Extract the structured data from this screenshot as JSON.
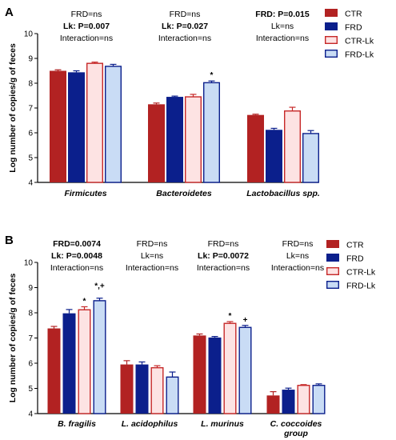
{
  "chart_data": [
    {
      "panel": "A",
      "type": "bar",
      "ylabel": "Log number of copies/g of feces",
      "ylim": [
        4,
        10
      ],
      "yticks": [
        "4",
        "5",
        "6",
        "7",
        "8",
        "9",
        "10"
      ],
      "categories": [
        "Firmicutes",
        "Bacteroidetes",
        "Lactobacillus spp."
      ],
      "series": [
        {
          "name": "CTR",
          "fill": "#b22222",
          "stroke": "#b22222",
          "values": [
            8.5,
            7.15,
            6.72
          ],
          "errors": [
            0.04,
            0.05,
            0.03
          ]
        },
        {
          "name": "FRD",
          "fill": "#0b1f8c",
          "stroke": "#0b1f8c",
          "values": [
            8.44,
            7.45,
            6.12
          ],
          "errors": [
            0.06,
            0.03,
            0.06
          ]
        },
        {
          "name": "CTR-Lk",
          "fill": "#fde3e3",
          "stroke": "#c62828",
          "values": [
            8.8,
            7.45,
            6.88
          ],
          "errors": [
            0.05,
            0.1,
            0.15
          ]
        },
        {
          "name": "FRD-Lk",
          "fill": "#c9dcf5",
          "stroke": "#0b1f8c",
          "values": [
            8.68,
            8.02,
            5.97
          ],
          "errors": [
            0.08,
            0.07,
            0.12
          ]
        }
      ],
      "significance_marks": [
        {
          "category": "Bacteroidetes",
          "series": "FRD-Lk",
          "mark": "*"
        }
      ],
      "stats": [
        [
          {
            "text": "FRD=ns",
            "bold": false
          },
          {
            "text": "Lk: P=0.007",
            "bold": true
          },
          {
            "text": "Interaction=ns",
            "bold": false
          }
        ],
        [
          {
            "text": "FRD=ns",
            "bold": false
          },
          {
            "text": "Lk: P=0.027",
            "bold": true
          },
          {
            "text": "Interaction=ns",
            "bold": false
          }
        ],
        [
          {
            "text": "FRD: P=0.015",
            "bold": true
          },
          {
            "text": "Lk=ns",
            "bold": false
          },
          {
            "text": "Interaction=ns",
            "bold": false
          }
        ]
      ],
      "legend": [
        "CTR",
        "FRD",
        "CTR-Lk",
        "FRD-Lk"
      ],
      "legend_position": "top-right"
    },
    {
      "panel": "B",
      "type": "bar",
      "ylabel": "Log number of copies/g of feces",
      "ylim": [
        4,
        10
      ],
      "yticks": [
        "4",
        "5",
        "6",
        "7",
        "8",
        "9",
        "10"
      ],
      "categories": [
        "B. fragilis",
        "L. acidophilus",
        "L. murinus",
        "C. coccoides group"
      ],
      "series": [
        {
          "name": "CTR",
          "fill": "#b22222",
          "stroke": "#b22222",
          "values": [
            7.38,
            5.95,
            7.1,
            4.72
          ],
          "errors": [
            0.08,
            0.15,
            0.06,
            0.15
          ]
        },
        {
          "name": "FRD",
          "fill": "#0b1f8c",
          "stroke": "#0b1f8c",
          "values": [
            7.98,
            5.95,
            7.02,
            4.95
          ],
          "errors": [
            0.15,
            0.1,
            0.04,
            0.06
          ]
        },
        {
          "name": "CTR-Lk",
          "fill": "#fde3e3",
          "stroke": "#c62828",
          "values": [
            8.12,
            5.82,
            7.58,
            5.12
          ],
          "errors": [
            0.12,
            0.08,
            0.07,
            0.03
          ]
        },
        {
          "name": "FRD-Lk",
          "fill": "#c9dcf5",
          "stroke": "#0b1f8c",
          "values": [
            8.48,
            5.45,
            7.42,
            5.12
          ],
          "errors": [
            0.1,
            0.2,
            0.08,
            0.06
          ]
        }
      ],
      "significance_marks": [
        {
          "category": "B. fragilis",
          "series": "CTR-Lk",
          "mark": "*"
        },
        {
          "category": "B. fragilis",
          "series": "FRD-Lk",
          "mark": "*,+"
        },
        {
          "category": "L. murinus",
          "series": "CTR-Lk",
          "mark": "*"
        },
        {
          "category": "L. murinus",
          "series": "FRD-Lk",
          "mark": "+"
        }
      ],
      "stats": [
        [
          {
            "text": "FRD=0.0074",
            "bold": true
          },
          {
            "text": "Lk: P=0.0048",
            "bold": true
          },
          {
            "text": "Interaction=ns",
            "bold": false
          }
        ],
        [
          {
            "text": "FRD=ns",
            "bold": false
          },
          {
            "text": "Lk=ns",
            "bold": false
          },
          {
            "text": "Interaction=ns",
            "bold": false
          }
        ],
        [
          {
            "text": "FRD=ns",
            "bold": false
          },
          {
            "text": "Lk: P=0.0072",
            "bold": true
          },
          {
            "text": "Interaction=ns",
            "bold": false
          }
        ],
        [
          {
            "text": "FRD=ns",
            "bold": false
          },
          {
            "text": "Lk=ns",
            "bold": false
          },
          {
            "text": "Interaction=ns",
            "bold": false
          }
        ]
      ],
      "legend": [
        "CTR",
        "FRD",
        "CTR-Lk",
        "FRD-Lk"
      ],
      "legend_position": "top-right"
    }
  ]
}
